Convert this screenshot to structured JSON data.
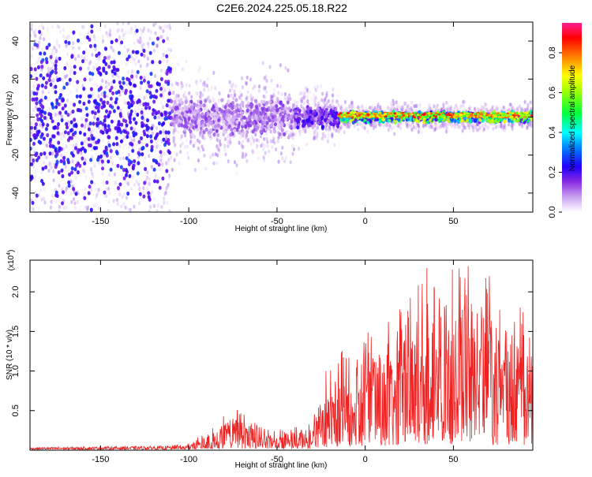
{
  "title": "C2E6.2024.225.05.18.R22",
  "colors": {
    "signal_line": "#ee2222",
    "spectrogram_palette": [
      "#ffffff",
      "#e6d2f7",
      "#b07ae6",
      "#8a2be2",
      "#5a00ff",
      "#0000ff",
      "#0090ff",
      "#00ffff",
      "#00ff00",
      "#ffff00",
      "#ff8000",
      "#ff0000",
      "#ff3090"
    ]
  },
  "chart_data": [
    {
      "type": "heatmap",
      "name": "spectrogram",
      "xlabel": "Height of straight line (km)",
      "ylabel": "Frequency (Hz)",
      "xlim": [
        -190,
        95
      ],
      "ylim": [
        -50,
        50
      ],
      "x_ticks": [
        -150,
        -100,
        -50,
        0,
        50
      ],
      "x_tick_labels": [
        "-150",
        "-100",
        "-50",
        "0",
        "50"
      ],
      "y_ticks": [
        -40,
        -20,
        0,
        20,
        40
      ],
      "y_tick_labels": [
        "-40",
        "-20",
        "0",
        "20",
        "40"
      ],
      "colorbar": {
        "label": "Normalized spectral amplitude",
        "range": [
          0,
          0.95
        ],
        "ticks": [
          0,
          0.2,
          0.4,
          0.6,
          0.8
        ],
        "tick_labels": [
          "0.0",
          "0.2",
          "0.4",
          "0.6",
          "0.8"
        ]
      },
      "regions": [
        {
          "x": [
            -190,
            -110
          ],
          "freq_spread_hz": 50,
          "amplitude": 0.05
        },
        {
          "x": [
            -110,
            -40
          ],
          "freq_spread_hz": 10,
          "amplitude": 0.15
        },
        {
          "x": [
            -40,
            -15
          ],
          "freq_spread_hz": 6,
          "amplitude": 0.25
        },
        {
          "x": [
            -15,
            95
          ],
          "freq_spread_hz": 3,
          "amplitude": 0.6
        }
      ]
    },
    {
      "type": "line",
      "name": "snr",
      "xlabel": "Height of straight line (km)",
      "ylabel": "SNR (10 * v/v)",
      "y_multiplier": "(x10",
      "y_multiplier_exp": "4",
      "y_multiplier_close": ")",
      "xlim": [
        -190,
        95
      ],
      "ylim": [
        0,
        2.4
      ],
      "x_ticks": [
        -150,
        -100,
        -50,
        0,
        50
      ],
      "x_tick_labels": [
        "-150",
        "-100",
        "-50",
        "0",
        "50"
      ],
      "y_ticks": [
        0.5,
        1.0,
        1.5,
        2.0
      ],
      "y_tick_labels": [
        "0.5",
        "1.0",
        "1.5",
        "2.0"
      ],
      "envelope": [
        {
          "x": -190,
          "max": 0.03
        },
        {
          "x": -110,
          "max": 0.05
        },
        {
          "x": -100,
          "max": 0.1
        },
        {
          "x": -90,
          "max": 0.2
        },
        {
          "x": -75,
          "max": 0.55
        },
        {
          "x": -60,
          "max": 0.3
        },
        {
          "x": -50,
          "max": 0.25
        },
        {
          "x": -40,
          "max": 0.3
        },
        {
          "x": -30,
          "max": 0.35
        },
        {
          "x": -22,
          "max": 1.1
        },
        {
          "x": -10,
          "max": 1.3
        },
        {
          "x": 0,
          "max": 1.5
        },
        {
          "x": 20,
          "max": 1.8
        },
        {
          "x": 35,
          "max": 2.3
        },
        {
          "x": 60,
          "max": 2.4
        },
        {
          "x": 80,
          "max": 2.0
        },
        {
          "x": 95,
          "max": 1.9
        }
      ]
    }
  ]
}
